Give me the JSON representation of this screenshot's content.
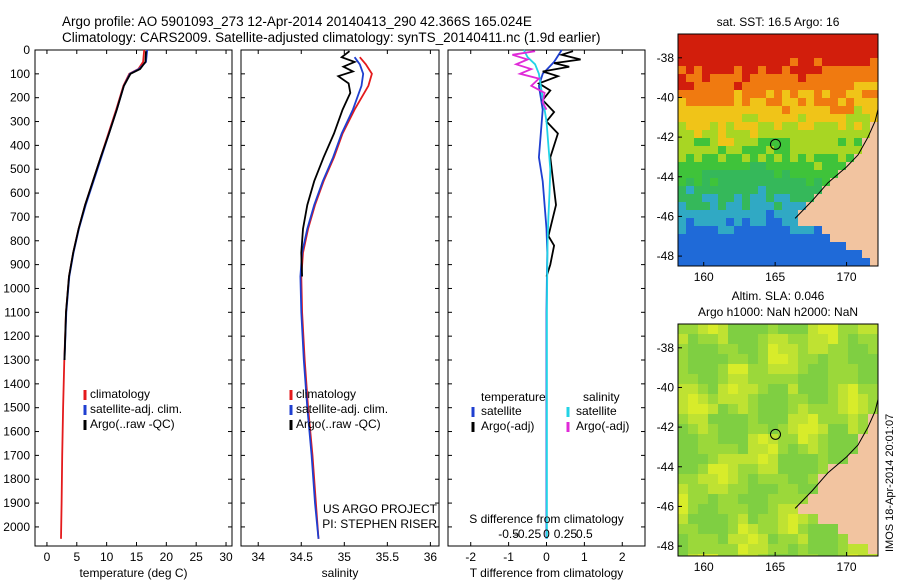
{
  "header": {
    "line1": "Argo profile: AO 5901093_273 12-Apr-2014 20140413_290 42.366S 165.024E",
    "line2": "Climatology: CARS2009. Satellite-adjusted climatology: synTS_20140411.nc (1.9d earlier)"
  },
  "colors": {
    "clim": "#e41a1c",
    "sat": "#1f3fd0",
    "argo": "#000000",
    "sat_salt": "#22d3e6",
    "argo_salt": "#e02ad8"
  },
  "chart_data": [
    {
      "type": "line",
      "id": "temperature",
      "xlabel": "temperature (deg C)",
      "ylabel": "",
      "xlim": [
        -2,
        31
      ],
      "ylim": [
        2080,
        0
      ],
      "xticks": [
        0,
        5,
        10,
        15,
        20,
        25,
        30
      ],
      "yticks": [
        0,
        100,
        200,
        300,
        400,
        500,
        600,
        700,
        800,
        900,
        1000,
        1100,
        1200,
        1300,
        1400,
        1500,
        1600,
        1700,
        1800,
        1900,
        2000
      ],
      "legend": [
        "climatology",
        "satellite-adj. clim.",
        "Argo(..raw -QC)"
      ],
      "series": [
        {
          "name": "climatology",
          "color": "clim",
          "x": [
            16.3,
            16.1,
            15.3,
            13.8,
            12.8,
            11.6,
            10.3,
            9.0,
            7.7,
            6.4,
            5.3,
            4.4,
            3.7,
            3.2,
            2.9,
            2.7,
            2.55,
            2.45,
            2.35
          ],
          "y": [
            0,
            50,
            80,
            100,
            150,
            250,
            350,
            450,
            550,
            650,
            750,
            850,
            950,
            1100,
            1300,
            1500,
            1700,
            1900,
            2050
          ]
        },
        {
          "name": "satellite-adj. clim.",
          "color": "sat",
          "x": [
            16.8,
            16.6,
            15.4,
            13.9,
            12.9,
            11.7,
            10.4,
            9.1,
            7.8,
            6.5,
            5.35,
            4.45,
            3.75,
            3.25,
            2.95
          ],
          "y": [
            0,
            50,
            80,
            100,
            150,
            250,
            350,
            450,
            550,
            650,
            750,
            850,
            950,
            1100,
            1300
          ]
        },
        {
          "name": "Argo(..raw -QC)",
          "color": "argo",
          "x": [
            16.6,
            16.5,
            15.6,
            14.0,
            12.9,
            11.7,
            10.4,
            9.0,
            7.7,
            6.4,
            5.3,
            4.4,
            3.7,
            3.2,
            2.95
          ],
          "y": [
            5,
            50,
            80,
            100,
            150,
            250,
            350,
            450,
            550,
            650,
            750,
            850,
            950,
            1100,
            1300
          ]
        }
      ]
    },
    {
      "type": "line",
      "id": "salinity",
      "xlabel": "salinity",
      "xlim": [
        33.8,
        36.1
      ],
      "ylim": [
        2080,
        0
      ],
      "xticks": [
        34,
        34.5,
        35,
        35.5,
        36
      ],
      "legend": [
        "climatology",
        "satellite-adj. clim.",
        "Argo(..raw -QC)"
      ],
      "annotations": [
        "US ARGO PROJECT",
        "PI: STEPHEN RISER"
      ],
      "series": [
        {
          "name": "climatology",
          "color": "clim",
          "x": [
            35.18,
            35.25,
            35.32,
            35.28,
            35.12,
            34.98,
            34.88,
            34.76,
            34.66,
            34.58,
            34.52,
            34.5,
            34.51,
            34.54,
            34.58,
            34.63,
            34.67,
            34.7
          ],
          "y": [
            30,
            60,
            100,
            150,
            250,
            350,
            450,
            550,
            650,
            750,
            850,
            950,
            1100,
            1300,
            1500,
            1700,
            1900,
            2050
          ]
        },
        {
          "name": "satellite-adj. clim.",
          "color": "sat",
          "x": [
            35.12,
            35.18,
            35.22,
            35.2,
            35.1,
            34.97,
            34.87,
            34.75,
            34.65,
            34.57,
            34.51,
            34.49,
            34.5,
            34.53,
            34.57,
            34.62,
            34.66,
            34.7
          ],
          "y": [
            30,
            60,
            100,
            150,
            250,
            350,
            450,
            550,
            650,
            750,
            850,
            950,
            1100,
            1300,
            1500,
            1700,
            1900,
            2050
          ]
        },
        {
          "name": "Argo(..raw -QC)",
          "color": "argo",
          "x": [
            35.06,
            34.97,
            35.12,
            34.99,
            35.1,
            34.93,
            35.05,
            35.07,
            34.98,
            34.88,
            34.76,
            34.65,
            34.57,
            34.52,
            34.5,
            34.51
          ],
          "y": [
            5,
            30,
            50,
            70,
            90,
            110,
            140,
            180,
            250,
            350,
            450,
            550,
            650,
            750,
            850,
            950
          ]
        }
      ]
    },
    {
      "type": "line",
      "id": "difference",
      "xlabel": "T difference from climatology",
      "xlabel_top": "S difference from climatology",
      "xlim": [
        -2.6,
        2.6
      ],
      "ylim": [
        2080,
        0
      ],
      "xticks": [
        -2,
        -1,
        0,
        1,
        2
      ],
      "xticks_top": [
        "-0.5",
        "-0.25",
        "0",
        "0.25",
        "0.5"
      ],
      "legend_left": [
        "temperature",
        "satellite",
        "Argo(-adj)"
      ],
      "legend_right": [
        "salinity",
        "satellite",
        "Argo(-adj)"
      ],
      "series": [
        {
          "name": "satellite",
          "color": "sat",
          "x": [
            0.4,
            0.2,
            -0.1,
            -0.2,
            -0.1,
            -0.15,
            -0.2,
            -0.1,
            -0.05,
            0,
            0.02,
            0.01,
            0,
            0,
            0,
            0
          ],
          "y": [
            0,
            50,
            100,
            150,
            250,
            350,
            450,
            550,
            650,
            750,
            850,
            950,
            1100,
            1300,
            1700,
            2050
          ]
        },
        {
          "name": "Argo(-adj)",
          "color": "argo",
          "x": [
            0.7,
            0.4,
            0.9,
            0.2,
            0.6,
            -0.1,
            0.3,
            -0.2,
            0.1,
            -0.1,
            0.2,
            0.0,
            0.3,
            0.1,
            0.25,
            0.05,
            0.2,
            0.1,
            0.0
          ],
          "y": [
            5,
            20,
            40,
            55,
            70,
            90,
            110,
            140,
            170,
            210,
            260,
            300,
            350,
            450,
            650,
            780,
            820,
            900,
            950
          ]
        },
        {
          "name": "salinity satellite",
          "color": "sat_salt",
          "x": [
            -0.6,
            -0.5,
            -0.3,
            -0.2,
            -0.1,
            0,
            0.05,
            0.1,
            0.08,
            0.05,
            0.03,
            0.02,
            0.01,
            0.01,
            0.01
          ],
          "y": [
            0,
            30,
            60,
            100,
            200,
            300,
            400,
            500,
            600,
            700,
            800,
            900,
            1100,
            1500,
            2050
          ]
        },
        {
          "name": "salinity Argo(-adj)",
          "color": "argo_salt",
          "x": [
            -0.3,
            -0.9,
            -0.5,
            -0.8,
            -0.4,
            -0.7,
            -0.2,
            -0.4,
            -0.05,
            -0.1,
            0
          ],
          "y": [
            5,
            20,
            40,
            60,
            80,
            100,
            120,
            150,
            180,
            220,
            250
          ]
        }
      ]
    },
    {
      "type": "heatmap",
      "id": "sst_map",
      "title": "sat. SST: 16.5 Argo: 16",
      "xlim": [
        158.2,
        172.2
      ],
      "ylim": [
        -48.5,
        -36.8
      ],
      "xticks": [
        160,
        165,
        170
      ],
      "yticks": [
        -38,
        -40,
        -42,
        -44,
        -46,
        -48
      ],
      "marker": {
        "lon": 165.024,
        "lat": -42.366
      }
    },
    {
      "type": "heatmap",
      "id": "sla_map",
      "title": "Altim. SLA: 0.046",
      "subtitle": "Argo h1000: NaN h2000: NaN",
      "xlim": [
        158.2,
        172.2
      ],
      "ylim": [
        -48.5,
        -36.8
      ],
      "xticks": [
        160,
        165,
        170
      ],
      "yticks": [
        -38,
        -40,
        -42,
        -44,
        -46,
        -48
      ],
      "marker": {
        "lon": 165.024,
        "lat": -42.366
      },
      "side_label": "IMOS 18-Apr-2014 20:01:07"
    }
  ]
}
